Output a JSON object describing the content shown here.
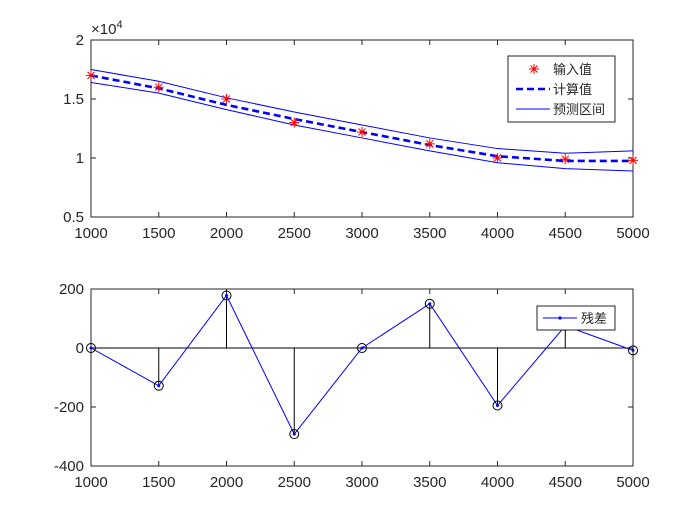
{
  "chart_data": [
    {
      "type": "line",
      "exponent_label": "×10",
      "exponent_power": "4",
      "xlim": [
        1000,
        5000
      ],
      "ylim": [
        5000,
        20000
      ],
      "x_ticks": [
        1000,
        1500,
        2000,
        2500,
        3000,
        3500,
        4000,
        4500,
        5000
      ],
      "x_tick_labels": [
        "1000",
        "1500",
        "2000",
        "2500",
        "3000",
        "3500",
        "4000",
        "4500",
        "5000"
      ],
      "y_ticks": [
        5000,
        10000,
        15000,
        20000
      ],
      "y_tick_labels": [
        "0.5",
        "1",
        "1.5",
        "2"
      ],
      "grid": false,
      "legend_position": "top-right",
      "series": [
        {
          "name": "输入值",
          "style": "red-asterisk",
          "color": "#ff0000",
          "x": [
            1000,
            1500,
            2000,
            2500,
            3000,
            3500,
            4000,
            4500,
            5000
          ],
          "y": [
            17000,
            16000,
            15000,
            13000,
            12200,
            11200,
            10000,
            9900,
            9800
          ]
        },
        {
          "name": "计算值",
          "style": "blue-dashed",
          "color": "#0000ff",
          "x": [
            1000,
            1500,
            2000,
            2500,
            3000,
            3500,
            4000,
            4500,
            5000
          ],
          "y": [
            17000,
            15900,
            14500,
            13300,
            12200,
            11100,
            10150,
            9750,
            9750
          ]
        },
        {
          "name": "预测区间",
          "style": "blue-solid-thin",
          "color": "#0000ff",
          "x": [
            1000,
            1500,
            2000,
            2500,
            3000,
            3500,
            4000,
            4500,
            5000
          ],
          "y_upper": [
            17500,
            16500,
            15100,
            13900,
            12800,
            11700,
            10800,
            10400,
            10600
          ],
          "y_lower": [
            16400,
            15500,
            14100,
            12800,
            11700,
            10600,
            9600,
            9100,
            8900
          ]
        }
      ]
    },
    {
      "type": "line",
      "xlim": [
        1000,
        5000
      ],
      "ylim": [
        -400,
        200
      ],
      "x_ticks": [
        1000,
        1500,
        2000,
        2500,
        3000,
        3500,
        4000,
        4500,
        5000
      ],
      "x_tick_labels": [
        "1000",
        "1500",
        "2000",
        "2500",
        "3000",
        "3500",
        "4000",
        "4500",
        "5000"
      ],
      "y_ticks": [
        -400,
        -200,
        0,
        200
      ],
      "y_tick_labels": [
        "-400",
        "-200",
        "0",
        "200"
      ],
      "grid": false,
      "legend_position": "top-right",
      "series": [
        {
          "name": "残差",
          "style": "blue-line-dot-with-stems-and-circles",
          "color": "#0000ff",
          "x": [
            1000,
            1500,
            2000,
            2500,
            3000,
            3500,
            4000,
            4500,
            5000
          ],
          "y": [
            0,
            -128,
            178,
            -292,
            0,
            150,
            -195,
            75,
            -8
          ]
        }
      ]
    }
  ]
}
